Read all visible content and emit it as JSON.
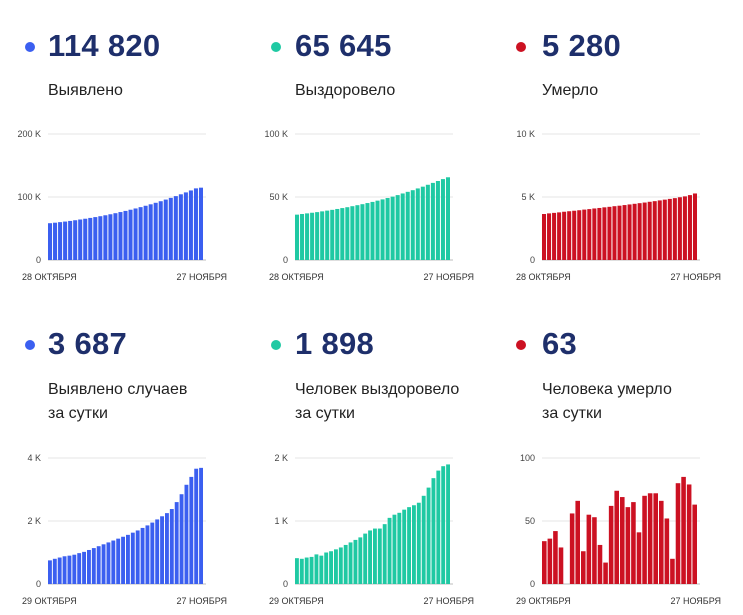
{
  "panels": [
    {
      "value": "114 820",
      "label_lines": [
        "Выявлено"
      ],
      "color": "#3b5ff0",
      "chart_data": {
        "type": "bar",
        "ylim": [
          0,
          200000
        ],
        "yticks": [
          {
            "v": 0,
            "t": "0"
          },
          {
            "v": 100000,
            "t": "100 K"
          },
          {
            "v": 200000,
            "t": "200 K"
          }
        ],
        "xlabel_start": "28 ОКТЯБРЯ",
        "xlabel_end": "27 НОЯБРЯ",
        "values": [
          58400,
          59200,
          60100,
          61000,
          62000,
          63100,
          64300,
          65500,
          66800,
          68100,
          69500,
          71000,
          72600,
          74300,
          76100,
          77900,
          79800,
          81800,
          83900,
          86100,
          88400,
          90800,
          93300,
          95900,
          98600,
          101400,
          104300,
          107300,
          110400,
          113700,
          114820
        ]
      }
    },
    {
      "value": "65 645",
      "label_lines": [
        "Выздоровело"
      ],
      "color": "#1fc9a3",
      "chart_data": {
        "type": "bar",
        "ylim": [
          0,
          100000
        ],
        "yticks": [
          {
            "v": 0,
            "t": "0"
          },
          {
            "v": 50000,
            "t": "50 K"
          },
          {
            "v": 100000,
            "t": "100 K"
          }
        ],
        "xlabel_start": "28 ОКТЯБРЯ",
        "xlabel_end": "27 НОЯБРЯ",
        "values": [
          36000,
          36500,
          37000,
          37500,
          38000,
          38600,
          39200,
          39800,
          40500,
          41200,
          41900,
          42700,
          43500,
          44300,
          45200,
          46100,
          47100,
          48100,
          49200,
          50300,
          51500,
          52800,
          54100,
          55400,
          56800,
          58200,
          59700,
          61200,
          62700,
          64200,
          65645
        ]
      }
    },
    {
      "value": "5 280",
      "label_lines": [
        "Умерло"
      ],
      "color": "#cc1122",
      "chart_data": {
        "type": "bar",
        "ylim": [
          0,
          10000
        ],
        "yticks": [
          {
            "v": 0,
            "t": "0"
          },
          {
            "v": 5000,
            "t": "5 K"
          },
          {
            "v": 10000,
            "t": "10 K"
          }
        ],
        "xlabel_start": "28 ОКТЯБРЯ",
        "xlabel_end": "27 НОЯБРЯ",
        "values": [
          3650,
          3700,
          3740,
          3780,
          3830,
          3870,
          3910,
          3950,
          4000,
          4040,
          4090,
          4130,
          4180,
          4220,
          4270,
          4310,
          4360,
          4410,
          4460,
          4510,
          4560,
          4620,
          4670,
          4730,
          4790,
          4850,
          4910,
          4980,
          5050,
          5150,
          5280
        ]
      }
    },
    {
      "value": "3 687",
      "label_lines": [
        "Выявлено случаев",
        "за сутки"
      ],
      "color": "#3b5ff0",
      "chart_data": {
        "type": "bar",
        "ylim": [
          0,
          4000
        ],
        "yticks": [
          {
            "v": 0,
            "t": "0"
          },
          {
            "v": 2000,
            "t": "2 K"
          },
          {
            "v": 4000,
            "t": "4 K"
          }
        ],
        "xlabel_start": "29 ОКТЯБРЯ",
        "xlabel_end": "27 НОЯБРЯ",
        "values": [
          750,
          800,
          840,
          880,
          900,
          930,
          980,
          1020,
          1080,
          1140,
          1200,
          1260,
          1320,
          1380,
          1440,
          1500,
          1560,
          1630,
          1700,
          1780,
          1860,
          1950,
          2050,
          2150,
          2250,
          2380,
          2600,
          2850,
          3150,
          3400,
          3660,
          3687
        ]
      }
    },
    {
      "value": "1 898",
      "label_lines": [
        "Человек выздоровело",
        "за сутки"
      ],
      "color": "#1fc9a3",
      "chart_data": {
        "type": "bar",
        "ylim": [
          0,
          2000
        ],
        "yticks": [
          {
            "v": 0,
            "t": "0"
          },
          {
            "v": 1000,
            "t": "1 K"
          },
          {
            "v": 2000,
            "t": "2 K"
          }
        ],
        "xlabel_start": "29 ОКТЯБРЯ",
        "xlabel_end": "27 НОЯБРЯ",
        "values": [
          410,
          400,
          420,
          430,
          470,
          450,
          500,
          520,
          550,
          580,
          620,
          660,
          700,
          740,
          800,
          850,
          880,
          880,
          950,
          1050,
          1100,
          1130,
          1180,
          1220,
          1250,
          1290,
          1400,
          1530,
          1680,
          1800,
          1870,
          1898
        ]
      }
    },
    {
      "value": "63",
      "label_lines": [
        "Человека умерло",
        "за сутки"
      ],
      "color": "#cc1122",
      "chart_data": {
        "type": "bar",
        "ylim": [
          0,
          100
        ],
        "yticks": [
          {
            "v": 0,
            "t": "0"
          },
          {
            "v": 50,
            "t": "50"
          },
          {
            "v": 100,
            "t": "100"
          }
        ],
        "xlabel_start": "29 ОКТЯБРЯ",
        "xlabel_end": "27 НОЯБРЯ",
        "values": [
          34,
          36,
          42,
          29,
          0,
          56,
          66,
          26,
          55,
          53,
          31,
          17,
          62,
          74,
          69,
          61,
          65,
          41,
          70,
          72,
          72,
          66,
          52,
          20,
          80,
          85,
          79,
          63
        ]
      }
    }
  ]
}
